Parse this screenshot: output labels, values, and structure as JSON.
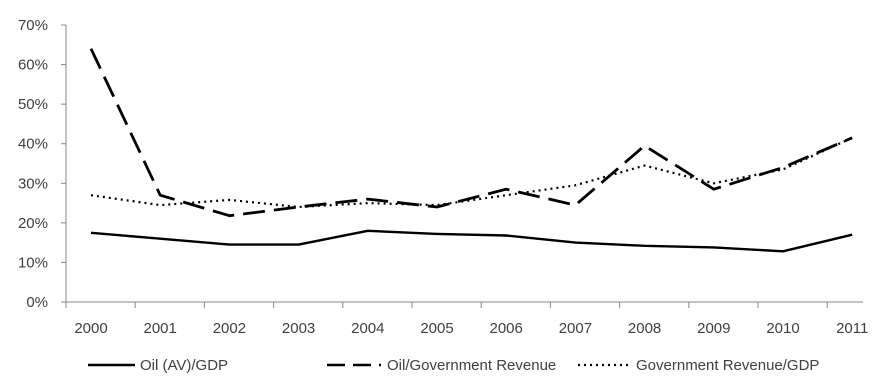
{
  "chart_data": {
    "type": "line",
    "categories": [
      "2000",
      "2001",
      "2002",
      "2003",
      "2004",
      "2005",
      "2006",
      "2007",
      "2008",
      "2009",
      "2010",
      "2011"
    ],
    "ylim": [
      0,
      70
    ],
    "yticks": [
      0,
      10,
      20,
      30,
      40,
      50,
      60,
      70
    ],
    "ytick_labels": [
      "0%",
      "10%",
      "20%",
      "30%",
      "40%",
      "50%",
      "60%",
      "70%"
    ],
    "grid": false,
    "legend_position": "bottom",
    "series": [
      {
        "name": "Oil (AV)/GDP",
        "style": "solid",
        "values": [
          17.5,
          16.0,
          14.5,
          14.5,
          18.0,
          17.2,
          16.8,
          15.0,
          14.2,
          13.8,
          12.8,
          17.0
        ]
      },
      {
        "name": "Oil/Government Revenue",
        "style": "dashed",
        "values": [
          64.0,
          27.0,
          21.8,
          24.0,
          26.0,
          24.0,
          28.5,
          24.5,
          39.5,
          28.5,
          34.0,
          41.5
        ]
      },
      {
        "name": "Government Revenue/GDP",
        "style": "dotted",
        "values": [
          27.0,
          24.5,
          25.8,
          24.0,
          25.0,
          24.5,
          27.0,
          29.5,
          34.5,
          30.0,
          33.5,
          41.5
        ]
      }
    ],
    "line_color": "#000000",
    "axis_color": "#888888",
    "text_color": "#404040"
  }
}
